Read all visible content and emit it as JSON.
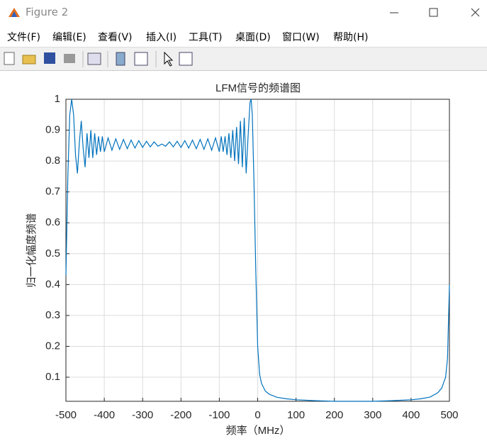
{
  "window": {
    "title": "Figure 2"
  },
  "menu": {
    "items": [
      "文件(F)",
      "编辑(E)",
      "查看(V)",
      "插入(I)",
      "工具(T)",
      "桌面(D)",
      "窗口(W)",
      "帮助(H)"
    ]
  },
  "chart_data": {
    "type": "line",
    "title": "LFM信号的频谱图",
    "x_label": "频率（MHz）",
    "y_label": "归一化幅度频谱",
    "x": [
      -500,
      -495,
      -490,
      -485,
      -480,
      -475,
      -470,
      -465,
      -460,
      -455,
      -450,
      -445,
      -440,
      -435,
      -430,
      -425,
      -420,
      -415,
      -410,
      -405,
      -400,
      -390,
      -380,
      -370,
      -360,
      -350,
      -340,
      -330,
      -320,
      -310,
      -300,
      -290,
      -280,
      -270,
      -260,
      -250,
      -240,
      -230,
      -220,
      -210,
      -200,
      -190,
      -180,
      -170,
      -160,
      -150,
      -140,
      -130,
      -120,
      -110,
      -100,
      -95,
      -90,
      -85,
      -80,
      -75,
      -70,
      -65,
      -60,
      -55,
      -50,
      -45,
      -40,
      -35,
      -30,
      -25,
      -20,
      -17,
      -14,
      -10,
      -5,
      0,
      5,
      10,
      20,
      30,
      50,
      75,
      100,
      150,
      200,
      250,
      300,
      350,
      400,
      425,
      450,
      470,
      480,
      490,
      495,
      500
    ],
    "series": [
      {
        "color": "#0072bd",
        "values": [
          0.43,
          0.75,
          0.95,
          1.0,
          0.95,
          0.82,
          0.76,
          0.86,
          0.93,
          0.84,
          0.78,
          0.89,
          0.81,
          0.9,
          0.81,
          0.89,
          0.82,
          0.88,
          0.83,
          0.88,
          0.83,
          0.875,
          0.835,
          0.872,
          0.838,
          0.87,
          0.84,
          0.868,
          0.842,
          0.866,
          0.844,
          0.864,
          0.846,
          0.862,
          0.848,
          0.855,
          0.848,
          0.862,
          0.846,
          0.864,
          0.844,
          0.866,
          0.842,
          0.868,
          0.84,
          0.87,
          0.838,
          0.872,
          0.835,
          0.875,
          0.83,
          0.88,
          0.83,
          0.88,
          0.82,
          0.89,
          0.81,
          0.9,
          0.8,
          0.91,
          0.79,
          0.93,
          0.78,
          0.94,
          0.76,
          0.88,
          0.99,
          1.0,
          0.95,
          0.75,
          0.45,
          0.2,
          0.11,
          0.08,
          0.055,
          0.045,
          0.035,
          0.03,
          0.027,
          0.024,
          0.022,
          0.022,
          0.022,
          0.024,
          0.027,
          0.03,
          0.036,
          0.05,
          0.065,
          0.1,
          0.16,
          0.4
        ]
      }
    ],
    "xlim": [
      -500,
      500
    ],
    "ylim": [
      0.022,
      1
    ],
    "xticks": [
      -500,
      -400,
      -300,
      -200,
      -100,
      0,
      100,
      200,
      300,
      400,
      500
    ],
    "yticks": [
      0.1,
      0.2,
      0.3,
      0.4,
      0.5,
      0.6,
      0.7,
      0.8,
      0.9,
      1
    ],
    "grid": true
  }
}
